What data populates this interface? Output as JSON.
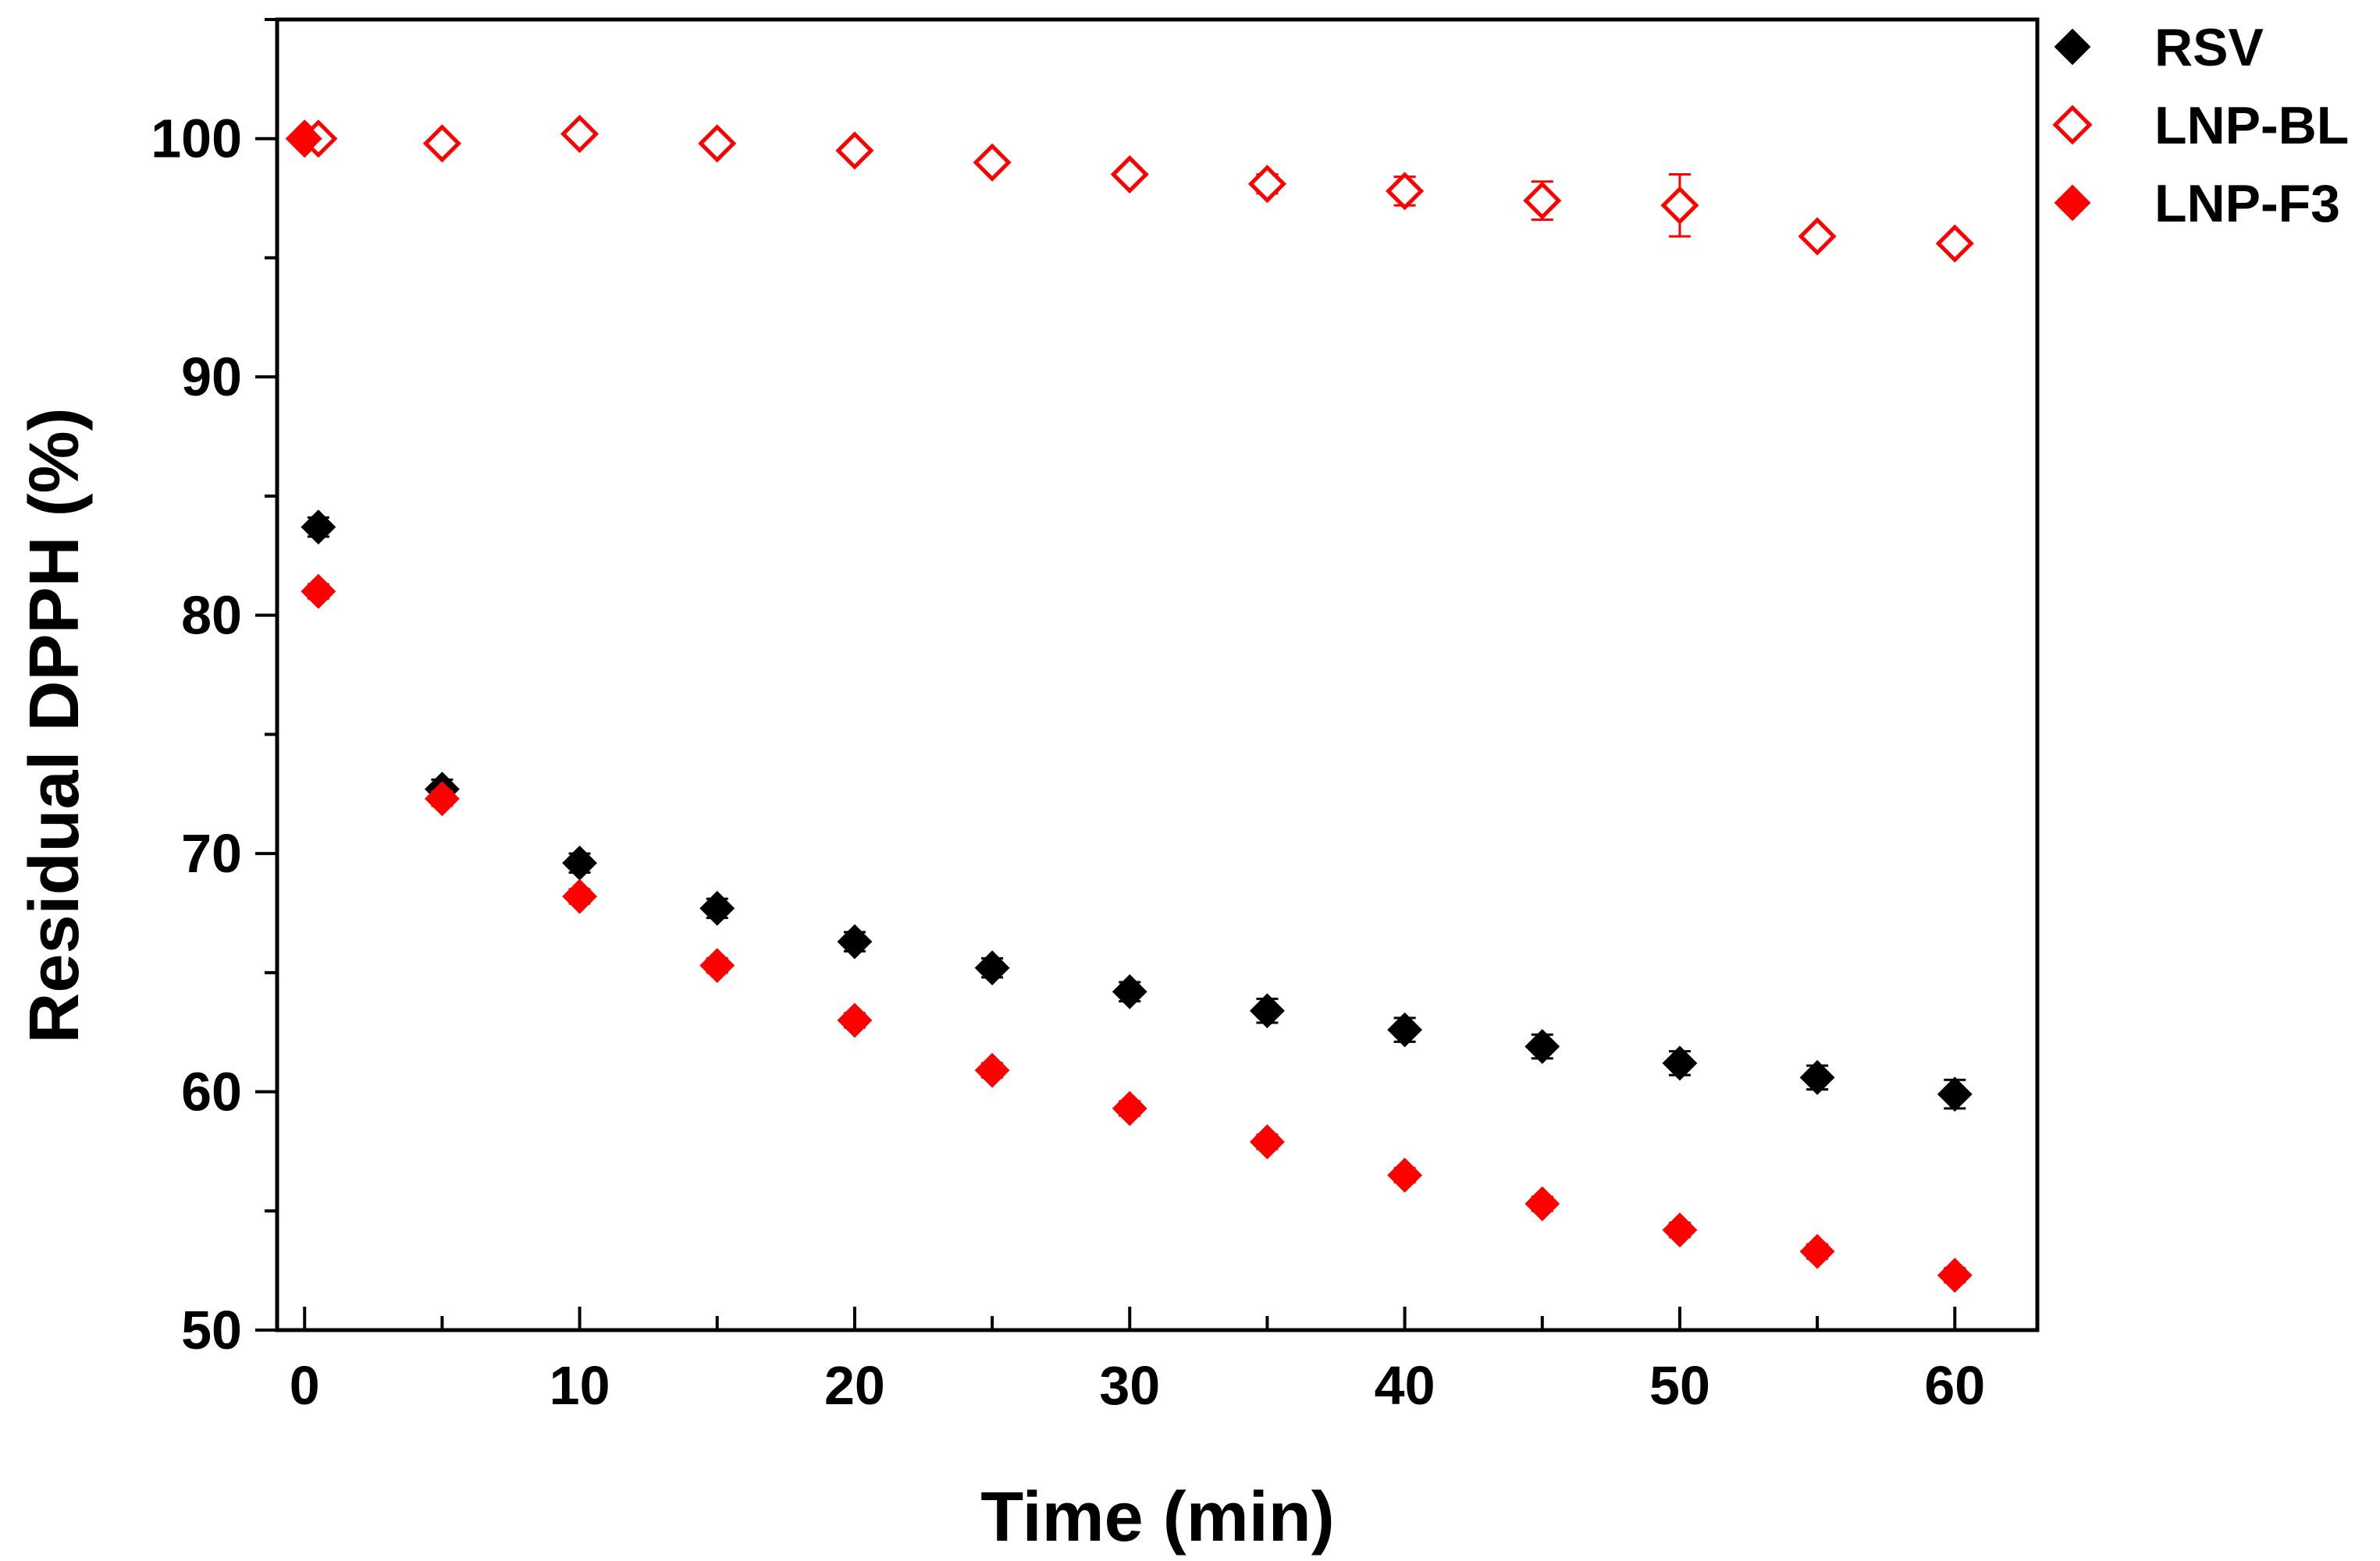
{
  "chart_data": {
    "type": "scatter",
    "title": "",
    "xlabel": "Time (min)",
    "ylabel": "Residual DPPH (%)",
    "xlim": [
      -1,
      63
    ],
    "ylim": [
      50,
      105
    ],
    "x_ticks": [
      0,
      10,
      20,
      30,
      40,
      50,
      60
    ],
    "y_ticks": [
      50,
      60,
      70,
      80,
      90,
      100
    ],
    "grid": false,
    "legend_position": "top-right outside",
    "series": [
      {
        "name": "RSV",
        "marker": "filled-diamond",
        "color": "#000000",
        "x": [
          0,
          0.5,
          5,
          10,
          15,
          20,
          25,
          30,
          35,
          40,
          45,
          50,
          55,
          60
        ],
        "y": [
          100,
          83.7,
          72.7,
          69.6,
          67.7,
          66.3,
          65.2,
          64.2,
          63.4,
          62.6,
          61.9,
          61.2,
          60.6,
          59.9
        ],
        "err": [
          0,
          0.4,
          0.4,
          0.4,
          0.4,
          0.4,
          0.4,
          0.4,
          0.5,
          0.5,
          0.5,
          0.5,
          0.5,
          0.6
        ]
      },
      {
        "name": "LNP-BL",
        "marker": "open-diamond",
        "color": "#ff0000",
        "x": [
          0,
          0.5,
          5,
          10,
          15,
          20,
          25,
          30,
          35,
          40,
          45,
          50,
          55,
          60
        ],
        "y": [
          100,
          100,
          99.8,
          100.2,
          99.8,
          99.5,
          99.0,
          98.5,
          98.1,
          97.8,
          97.4,
          97.2,
          95.9,
          95.6
        ],
        "err": [
          0,
          0.2,
          0.3,
          0.3,
          0.2,
          0.3,
          0.3,
          0.3,
          0.4,
          0.6,
          0.8,
          1.3,
          0.3,
          0.2
        ]
      },
      {
        "name": "LNP-F3",
        "marker": "filled-diamond",
        "color": "#ff0000",
        "x": [
          0,
          0.5,
          5,
          10,
          15,
          20,
          25,
          30,
          35,
          40,
          45,
          50,
          55,
          60
        ],
        "y": [
          100,
          81.0,
          72.3,
          68.2,
          65.3,
          63.0,
          60.9,
          59.3,
          57.9,
          56.5,
          55.3,
          54.2,
          53.3,
          52.3
        ],
        "err": [
          0,
          0.3,
          0.3,
          0.3,
          0.3,
          0.3,
          0.3,
          0.3,
          0.3,
          0.3,
          0.3,
          0.3,
          0.3,
          0.3
        ]
      }
    ]
  }
}
